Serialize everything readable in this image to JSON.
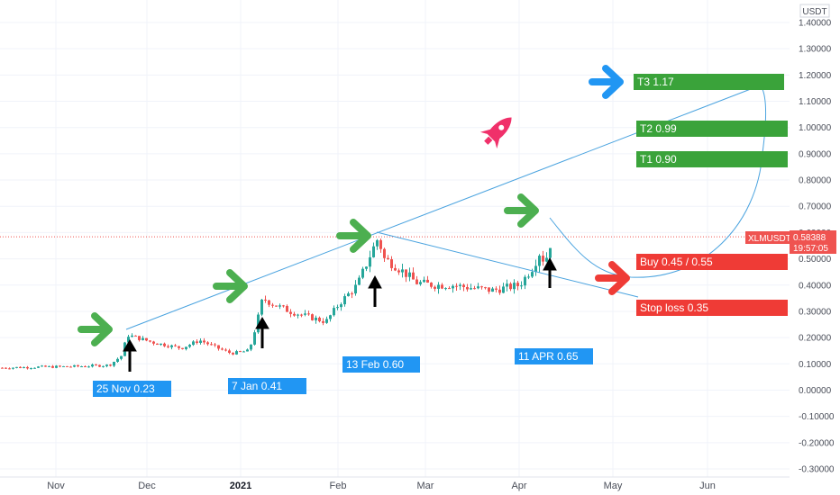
{
  "chart_data": {
    "type": "candlestick",
    "symbol": "XLMUSDT",
    "currency": "USDT",
    "last_price": "0.58388",
    "countdown": "19:57:05",
    "ylim": [
      -0.3,
      1.48
    ],
    "yticks": [
      "1.40000",
      "1.30000",
      "1.20000",
      "1.10000",
      "1.00000",
      "0.90000",
      "0.80000",
      "0.70000",
      "0.60000",
      "0.50000",
      "0.40000",
      "0.30000",
      "0.20000",
      "0.10000",
      "0.00000",
      "-0.10000",
      "-0.20000",
      "-0.30000"
    ],
    "xticks": [
      {
        "label": "Nov",
        "bold": false
      },
      {
        "label": "Dec",
        "bold": false
      },
      {
        "label": "2021",
        "bold": true
      },
      {
        "label": "Feb",
        "bold": false
      },
      {
        "label": "Mar",
        "bold": false
      },
      {
        "label": "Apr",
        "bold": false
      },
      {
        "label": "May",
        "bold": false
      },
      {
        "label": "Jun",
        "bold": false
      }
    ],
    "annotations": {
      "entries": [
        {
          "text": "25 Nov    0.23"
        },
        {
          "text": "7 Jan  0.41"
        },
        {
          "text": "13 Feb  0.60"
        },
        {
          "text": "11 APR   0.65"
        }
      ],
      "targets": [
        {
          "text": "T3  1.17"
        },
        {
          "text": "T2 0.99"
        },
        {
          "text": "T1 0.90"
        },
        {
          "text": "Buy   0.45 / 0.55"
        },
        {
          "text": "Stop loss 0.35"
        }
      ]
    },
    "colors": {
      "up": "#26a69a",
      "down": "#ef5350",
      "green_label": "#3aa33a",
      "red_label": "#ef3b36",
      "blue_label": "#2196f3",
      "trend": "#4aa3df",
      "pink": "#f0306a",
      "arrow_blue": "#2196f3",
      "arrow_green": "#4caf50",
      "arrow_red": "#ef3b36"
    }
  }
}
